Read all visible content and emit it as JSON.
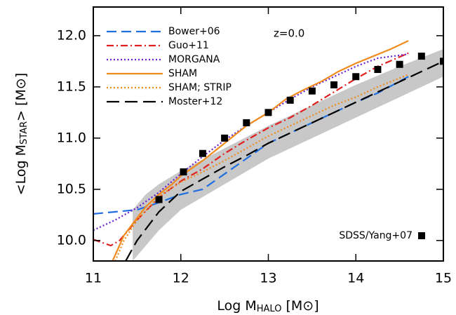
{
  "chart_data": {
    "type": "line",
    "x_label": "Log M",
    "x_label_sub": "HALO",
    "x_label_unit": " [M⊙]",
    "y_label": "<Log M",
    "y_label_sub": "STAR",
    "y_label_unit": "> [M⊙]",
    "annotation": "z=0.0",
    "xlim": [
      11,
      15
    ],
    "ylim": [
      9.8,
      12.28
    ],
    "xticks": [
      11,
      12,
      13,
      14,
      15
    ],
    "yticks": [
      {
        "value": 10,
        "label": "10.0"
      },
      10.5,
      {
        "value": 11,
        "label": "11.0"
      },
      11.5,
      {
        "value": 12,
        "label": "12.0"
      }
    ],
    "series": [
      {
        "name": "Bower+06",
        "color": "#1f6fe0",
        "style": "dashed",
        "x": [
          11,
          11.5,
          11.75,
          12,
          12.25,
          12.5,
          12.75,
          13,
          13.25,
          13.5,
          13.75,
          14,
          14.25,
          14.6
        ],
        "values": [
          10.26,
          10.3,
          10.37,
          10.45,
          10.5,
          10.65,
          10.8,
          10.95,
          11.05,
          11.15,
          11.25,
          11.35,
          11.44,
          11.6
        ]
      },
      {
        "name": "Guo+11",
        "color": "#e02020",
        "style": "dashdot",
        "x": [
          11,
          11.1,
          11.2,
          11.3,
          11.5,
          11.75,
          12,
          12.25,
          12.5,
          12.75,
          13,
          13.25,
          13.5,
          13.75,
          14,
          14.25,
          14.6
        ],
        "values": [
          10.01,
          9.98,
          9.95,
          10.0,
          10.2,
          10.42,
          10.58,
          10.7,
          10.85,
          10.98,
          11.1,
          11.2,
          11.32,
          11.45,
          11.58,
          11.7,
          11.83
        ]
      },
      {
        "name": "MORGANA",
        "color": "#6a1fd0",
        "style": "dotted",
        "x": [
          11,
          11.25,
          11.5,
          11.75,
          12,
          12.25,
          12.5,
          12.75,
          13,
          13.25,
          13.5,
          13.75,
          14,
          14.25,
          14.6
        ],
        "values": [
          10.1,
          10.2,
          10.32,
          10.47,
          10.65,
          10.82,
          10.98,
          11.12,
          11.25,
          11.38,
          11.5,
          11.6,
          11.7,
          11.78,
          11.82
        ]
      },
      {
        "name": "SHAM",
        "color": "#f08c1e",
        "style": "solid",
        "x": [
          11.22,
          11.35,
          11.5,
          11.6,
          11.75,
          11.9,
          12,
          12.25,
          12.5,
          12.75,
          13,
          13.2,
          13.4,
          13.6,
          13.8,
          14,
          14.2,
          14.4,
          14.6
        ],
        "values": [
          9.8,
          10.05,
          10.22,
          10.33,
          10.45,
          10.55,
          10.63,
          10.78,
          10.95,
          11.12,
          11.25,
          11.38,
          11.47,
          11.55,
          11.65,
          11.73,
          11.8,
          11.87,
          11.95
        ]
      },
      {
        "name": "SHAM; STRIP",
        "color": "#f08c1e",
        "style": "dotted",
        "x": [
          11.25,
          11.35,
          11.5,
          11.75,
          12,
          12.25,
          12.5,
          12.75,
          13,
          13.25,
          13.5,
          13.75,
          14,
          14.25,
          14.6
        ],
        "values": [
          9.8,
          10.0,
          10.2,
          10.43,
          10.57,
          10.67,
          10.78,
          10.9,
          11.02,
          11.12,
          11.22,
          11.32,
          11.4,
          11.5,
          11.62
        ]
      },
      {
        "name": "Moster+12",
        "color": "#000000",
        "style": "longdash",
        "x": [
          11.37,
          11.5,
          11.75,
          12,
          12.25,
          12.5,
          12.75,
          13,
          13.25,
          13.5,
          13.75,
          14,
          14.25,
          14.5,
          15
        ],
        "values": [
          9.8,
          10.0,
          10.28,
          10.48,
          10.6,
          10.72,
          10.83,
          10.95,
          11.05,
          11.15,
          11.25,
          11.35,
          11.45,
          11.55,
          11.75
        ]
      }
    ],
    "band": {
      "color": "#c8c8c8",
      "x": [
        11.45,
        11.6,
        11.75,
        12,
        12.5,
        13,
        13.5,
        14,
        14.5,
        15
      ],
      "upper": [
        10.3,
        10.45,
        10.55,
        10.68,
        10.9,
        11.12,
        11.32,
        11.52,
        11.7,
        11.87
      ],
      "lower": [
        9.8,
        9.95,
        10.1,
        10.3,
        10.55,
        10.8,
        11.0,
        11.2,
        11.4,
        11.6
      ]
    },
    "scatter": {
      "name": "SDSS/Yang+07",
      "color": "#000000",
      "x": [
        11.75,
        12.03,
        12.25,
        12.5,
        12.75,
        13,
        13.25,
        13.5,
        13.75,
        14,
        14.25,
        14.5,
        14.75,
        15
      ],
      "values": [
        10.4,
        10.67,
        10.85,
        11.0,
        11.15,
        11.25,
        11.37,
        11.46,
        11.52,
        11.6,
        11.67,
        11.72,
        11.8,
        11.75
      ]
    }
  }
}
